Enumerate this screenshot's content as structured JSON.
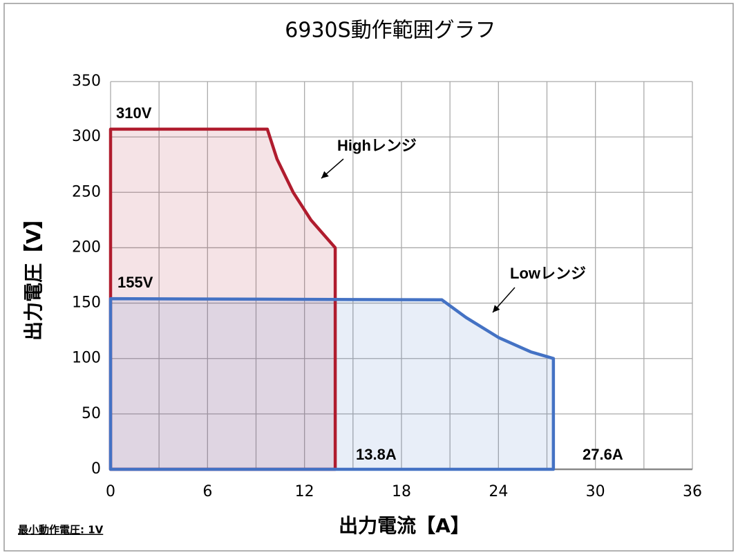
{
  "chart_data": {
    "type": "area",
    "title": "6930S動作範囲グラフ",
    "x_label": "出力電流【A】",
    "y_label": "出力電圧【V】",
    "xlim": [
      0,
      36
    ],
    "xticks": [
      0,
      6,
      12,
      18,
      24,
      30,
      36
    ],
    "x_minor_grid": [
      3,
      9,
      15,
      21,
      27,
      33
    ],
    "ylim": [
      0,
      350
    ],
    "yticks": [
      0,
      50,
      100,
      150,
      200,
      250,
      300,
      350
    ],
    "grid": true,
    "series": [
      {
        "name": "Highレンジ",
        "color": "#b01c2e",
        "x": [
          0,
          9.7,
          10.3,
          11.3,
          12.4,
          13.9,
          13.9,
          0
        ],
        "values": [
          307,
          307,
          280,
          250,
          225,
          200,
          0,
          0
        ]
      },
      {
        "name": "Lowレンジ",
        "color": "#4472c4",
        "x": [
          0,
          20.5,
          22,
          24,
          26,
          27.4,
          27.4,
          0
        ],
        "values": [
          154,
          153,
          137,
          119,
          106,
          100,
          0,
          0
        ]
      }
    ],
    "annotations": [
      "310V",
      "155V",
      "13.8A",
      "27.6A"
    ],
    "footnote": "最小動作電圧: 1V"
  }
}
